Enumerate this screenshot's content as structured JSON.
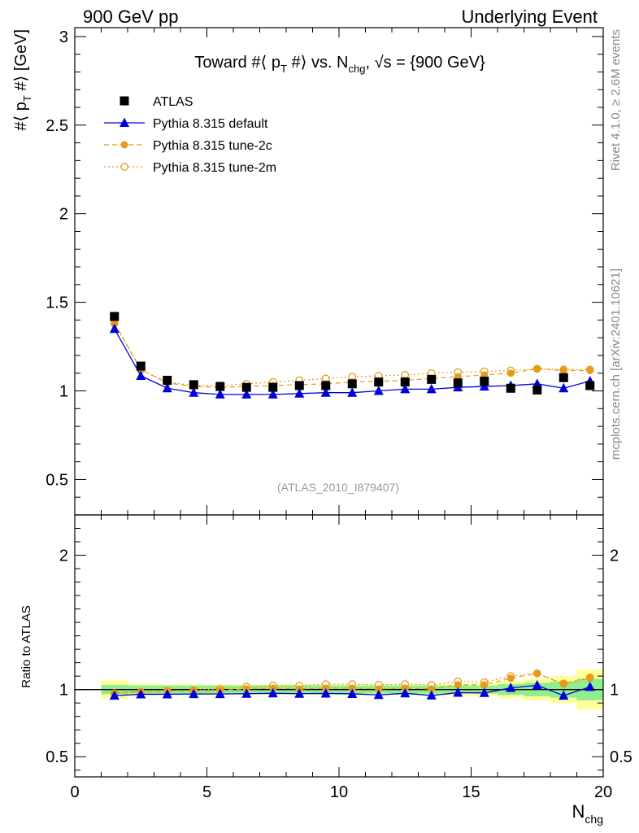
{
  "header": {
    "left": "900 GeV pp",
    "right": "Underlying Event"
  },
  "side_text": {
    "rivet": "Rivet 4.1.0, ≥ 2.6M events",
    "mcplots": "mcplots.cern.ch [arXiv:2401.10621]"
  },
  "colors": {
    "atlas": "#000000",
    "default": "#0000dd",
    "tune2c": "#e69a1a",
    "tune2m": "#e69a1a",
    "band_inner": "#90ee90",
    "band_outer": "#ffff99",
    "watermark": "#999999"
  },
  "chart_data": [
    {
      "type": "scatter",
      "panel": "main",
      "title_parts": [
        "Toward #⟨ p",
        "T",
        " #⟩ vs. N",
        "chg",
        ", √s = {900 GeV}"
      ],
      "ylabel_parts": [
        "#⟨ p",
        "T",
        " #⟩ [GeV]"
      ],
      "watermark": "(ATLAS_2010_I879407)",
      "xlim": [
        0,
        20
      ],
      "ylim": [
        0.3,
        3.05
      ],
      "x_ticks": [
        0,
        5,
        10,
        15,
        20
      ],
      "y_ticks": [
        0.5,
        1,
        1.5,
        2,
        2.5,
        3
      ],
      "y_tick_labels": [
        "0.5",
        "1",
        "1.5",
        "2",
        "2.5",
        "3"
      ],
      "legend_position": "top-left",
      "x": [
        1.5,
        2.5,
        3.5,
        4.5,
        5.5,
        6.5,
        7.5,
        8.5,
        9.5,
        10.5,
        11.5,
        12.5,
        13.5,
        14.5,
        15.5,
        16.5,
        17.5,
        18.5,
        19.5
      ],
      "series": [
        {
          "name": "ATLAS",
          "style": "data",
          "values": [
            1.42,
            1.14,
            1.06,
            1.035,
            1.025,
            1.02,
            1.02,
            1.03,
            1.03,
            1.04,
            1.05,
            1.05,
            1.065,
            1.045,
            1.055,
            1.015,
            1.005,
            1.075,
            1.03
          ]
        },
        {
          "name": "Pythia 8.315 default",
          "style": "default",
          "values": [
            1.35,
            1.085,
            1.015,
            0.99,
            0.98,
            0.98,
            0.98,
            0.985,
            0.99,
            0.99,
            1.0,
            1.01,
            1.01,
            1.02,
            1.025,
            1.03,
            1.04,
            1.015,
            1.055
          ]
        },
        {
          "name": "Pythia 8.315 tune-2c",
          "style": "tune2c",
          "values": [
            1.385,
            1.12,
            1.045,
            1.025,
            1.02,
            1.025,
            1.03,
            1.035,
            1.04,
            1.05,
            1.055,
            1.06,
            1.07,
            1.08,
            1.09,
            1.1,
            1.125,
            1.115,
            1.115
          ]
        },
        {
          "name": "Pythia 8.315 tune-2m",
          "style": "tune2m",
          "values": [
            1.38,
            1.12,
            1.05,
            1.03,
            1.03,
            1.04,
            1.05,
            1.06,
            1.07,
            1.08,
            1.085,
            1.09,
            1.1,
            1.105,
            1.11,
            1.115,
            1.125,
            1.12,
            1.12
          ]
        }
      ]
    },
    {
      "type": "scatter",
      "panel": "ratio",
      "ylabel": "Ratio to ATLAS",
      "xlabel_parts": [
        "N",
        "chg"
      ],
      "xlim": [
        0,
        20
      ],
      "ylim": [
        0.35,
        2.3
      ],
      "x_ticks": [
        0,
        5,
        10,
        15,
        20
      ],
      "x_tick_labels": [
        "0",
        "5",
        "10",
        "15",
        "20"
      ],
      "y_ticks": [
        0.5,
        1,
        2
      ],
      "y_tick_labels": [
        "0.5",
        "1",
        "2"
      ],
      "x": [
        1.5,
        2.5,
        3.5,
        4.5,
        5.5,
        6.5,
        7.5,
        8.5,
        9.5,
        10.5,
        11.5,
        12.5,
        13.5,
        14.5,
        15.5,
        16.5,
        17.5,
        18.5,
        19.5
      ],
      "band_inner": [
        0.035,
        0.03,
        0.03,
        0.03,
        0.03,
        0.03,
        0.03,
        0.03,
        0.03,
        0.03,
        0.03,
        0.03,
        0.03,
        0.03,
        0.03,
        0.04,
        0.05,
        0.06,
        0.08
      ],
      "band_outer": [
        0.07,
        0.045,
        0.04,
        0.04,
        0.04,
        0.04,
        0.04,
        0.04,
        0.04,
        0.04,
        0.04,
        0.04,
        0.04,
        0.045,
        0.05,
        0.065,
        0.08,
        0.1,
        0.15
      ],
      "series": [
        {
          "name": "Pythia 8.315 default",
          "style": "default",
          "values": [
            0.955,
            0.965,
            0.965,
            0.967,
            0.967,
            0.969,
            0.972,
            0.969,
            0.971,
            0.968,
            0.96,
            0.972,
            0.956,
            0.977,
            0.975,
            1.012,
            1.032,
            0.955,
            1.02
          ]
        },
        {
          "name": "Pythia 8.315 tune-2c",
          "style": "tune2c",
          "values": [
            0.975,
            0.985,
            0.99,
            0.99,
            0.995,
            1.005,
            1.01,
            1.005,
            1.01,
            1.01,
            1.005,
            1.01,
            1.005,
            1.035,
            1.035,
            1.085,
            1.12,
            1.04,
            1.085
          ]
        },
        {
          "name": "Pythia 8.315 tune-2m",
          "style": "tune2m",
          "values": [
            0.972,
            0.982,
            0.99,
            0.995,
            1.005,
            1.02,
            1.03,
            1.03,
            1.04,
            1.04,
            1.035,
            1.04,
            1.035,
            1.06,
            1.055,
            1.1,
            1.12,
            1.045,
            1.09
          ]
        }
      ]
    }
  ]
}
